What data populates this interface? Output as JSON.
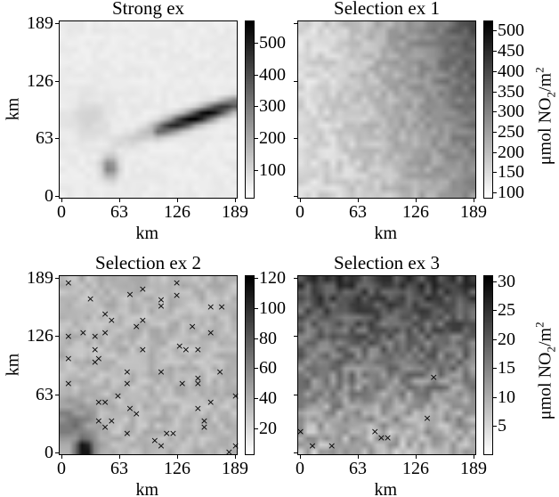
{
  "figure": {
    "unit_label": "μmol NO2/m2"
  },
  "chart_data": [
    {
      "type": "heatmap",
      "title": "Strong ex",
      "xlabel": "km",
      "ylabel": "km",
      "xticks": [
        "0",
        "63",
        "126",
        "189"
      ],
      "yticks": [
        "0",
        "63",
        "126",
        "189"
      ],
      "xlim": [
        0,
        189
      ],
      "ylim": [
        0,
        189
      ],
      "grid_size": 28,
      "colormap": "gray_r",
      "colorbar": {
        "ticks": [
          "100",
          "200",
          "300",
          "400",
          "500"
        ],
        "range": [
          10,
          570
        ],
        "label": ""
      },
      "pattern": "plume",
      "features": [
        {
          "desc": "diagonal plume",
          "from_km": [
            100,
            70
          ],
          "to_km": [
            189,
            100
          ],
          "peak": 570
        },
        {
          "desc": "small blob",
          "center_km": [
            52,
            30
          ],
          "peak": 360
        }
      ],
      "background": 40,
      "markers": []
    },
    {
      "type": "heatmap",
      "title": "Selection ex 1",
      "xlabel": "km",
      "ylabel": "",
      "xticks": [
        "0",
        "63",
        "126",
        "189"
      ],
      "yticks": [],
      "xlim": [
        0,
        189
      ],
      "ylim": [
        0,
        189
      ],
      "grid_size": 28,
      "colormap": "gray_r",
      "colorbar": {
        "ticks": [
          "100",
          "150",
          "200",
          "250",
          "300",
          "350",
          "400",
          "450",
          "500"
        ],
        "range": [
          85,
          525
        ],
        "label": "μmol NO2/m2"
      },
      "pattern": "gradient_upper_right",
      "background": 150,
      "peak": 520,
      "markers": []
    },
    {
      "type": "heatmap",
      "title": "Selection ex 2",
      "xlabel": "km",
      "ylabel": "km",
      "xticks": [
        "0",
        "63",
        "126",
        "189"
      ],
      "yticks": [
        "0",
        "63",
        "126",
        "189"
      ],
      "xlim": [
        0,
        189
      ],
      "ylim": [
        0,
        189
      ],
      "grid_size": 28,
      "colormap": "gray_r",
      "colorbar": {
        "ticks": [
          "20",
          "40",
          "60",
          "80",
          "100",
          "120"
        ],
        "range": [
          2,
          122
        ],
        "label": ""
      },
      "pattern": "noisy_lower_left_hotspot",
      "background": 25,
      "peak": 122,
      "markers": [
        [
          7,
          183
        ],
        [
          88,
          176
        ],
        [
          125,
          183
        ],
        [
          31,
          166
        ],
        [
          74,
          171
        ],
        [
          108,
          165
        ],
        [
          108,
          158
        ],
        [
          125,
          170
        ],
        [
          162,
          157
        ],
        [
          174,
          157
        ],
        [
          47,
          149
        ],
        [
          54,
          143
        ],
        [
          88,
          143
        ],
        [
          81,
          136
        ],
        [
          142,
          136
        ],
        [
          7,
          125
        ],
        [
          23,
          129
        ],
        [
          36,
          125
        ],
        [
          47,
          129
        ],
        [
          162,
          129
        ],
        [
          128,
          115
        ],
        [
          135,
          111
        ],
        [
          148,
          111
        ],
        [
          36,
          111
        ],
        [
          88,
          111
        ],
        [
          7,
          101
        ],
        [
          40,
          101
        ],
        [
          36,
          97
        ],
        [
          71,
          87
        ],
        [
          108,
          87
        ],
        [
          172,
          87
        ],
        [
          148,
          80
        ],
        [
          7,
          74
        ],
        [
          71,
          74
        ],
        [
          131,
          74
        ],
        [
          148,
          74
        ],
        [
          61,
          61
        ],
        [
          189,
          61
        ],
        [
          40,
          54
        ],
        [
          47,
          54
        ],
        [
          74,
          47
        ],
        [
          81,
          41
        ],
        [
          148,
          47
        ],
        [
          162,
          54
        ],
        [
          40,
          34
        ],
        [
          54,
          34
        ],
        [
          47,
          27
        ],
        [
          71,
          20
        ],
        [
          114,
          20
        ],
        [
          121,
          20
        ],
        [
          101,
          13
        ],
        [
          108,
          7
        ],
        [
          155,
          34
        ],
        [
          155,
          27
        ],
        [
          182,
          0
        ],
        [
          189,
          7
        ]
      ]
    },
    {
      "type": "heatmap",
      "title": "Selection ex 3",
      "xlabel": "km",
      "ylabel": "",
      "xticks": [
        "0",
        "63",
        "126",
        "189"
      ],
      "yticks": [],
      "xlim": [
        0,
        189
      ],
      "ylim": [
        0,
        189
      ],
      "grid_size": 28,
      "colormap": "gray_r",
      "colorbar": {
        "ticks": [
          "5",
          "10",
          "15",
          "20",
          "25",
          "30"
        ],
        "range": [
          0,
          31
        ],
        "label": "μmol NO2/m2"
      },
      "pattern": "gradient_top_dark",
      "background": 8,
      "peak": 30,
      "markers": [
        [
          145,
          81
        ],
        [
          138,
          37
        ],
        [
          0,
          22
        ],
        [
          13,
          7
        ],
        [
          34,
          7
        ],
        [
          81,
          22
        ],
        [
          88,
          15
        ],
        [
          95,
          15
        ]
      ]
    }
  ]
}
